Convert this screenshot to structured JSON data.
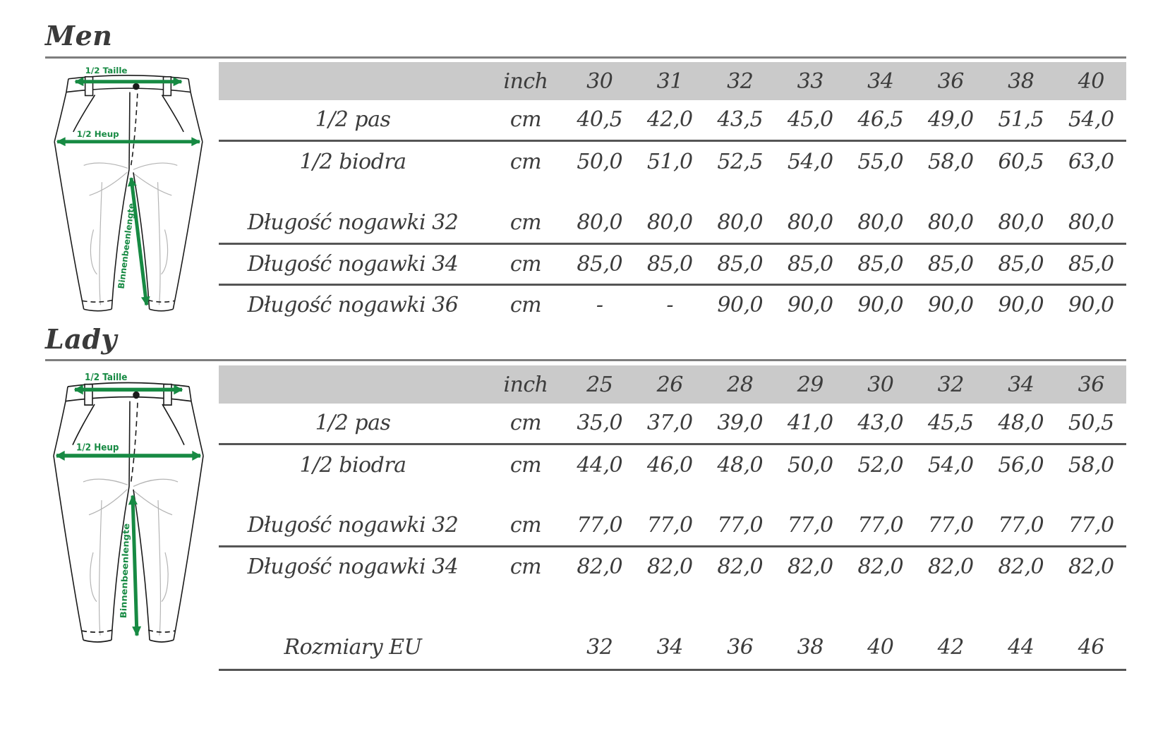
{
  "colors": {
    "accent_green": "#178a43",
    "header_band": "#cacaca",
    "rule_dark": "#555555",
    "rule_light": "#7e7e7e",
    "text": "#3c3c3c"
  },
  "sections": [
    {
      "title": "Men",
      "diagram": {
        "waist_label": "1/2 Taille",
        "hip_label": "1/2 Heup",
        "inseam_label": "Binnenbeenlengte"
      },
      "table": {
        "unit_header": "inch",
        "sizes": [
          "30",
          "31",
          "32",
          "33",
          "34",
          "36",
          "38",
          "40"
        ],
        "rows": [
          {
            "label": "1/2 pas",
            "unit": "cm",
            "values": [
              "40,5",
              "42,0",
              "43,5",
              "45,0",
              "46,5",
              "49,0",
              "51,5",
              "54,0"
            ],
            "rule_below": true
          },
          {
            "label": "1/2 biodra",
            "unit": "cm",
            "values": [
              "50,0",
              "51,0",
              "52,5",
              "54,0",
              "55,0",
              "58,0",
              "60,5",
              "63,0"
            ],
            "rule_below": false,
            "spacer_after": "small"
          },
          {
            "label": "Długość nogawki 32",
            "unit": "cm",
            "values": [
              "80,0",
              "80,0",
              "80,0",
              "80,0",
              "80,0",
              "80,0",
              "80,0",
              "80,0"
            ],
            "rule_below": true
          },
          {
            "label": "Długość nogawki 34",
            "unit": "cm",
            "values": [
              "85,0",
              "85,0",
              "85,0",
              "85,0",
              "85,0",
              "85,0",
              "85,0",
              "85,0"
            ],
            "rule_below": true
          },
          {
            "label": "Długość nogawki 36",
            "unit": "cm",
            "values": [
              "-",
              "-",
              "90,0",
              "90,0",
              "90,0",
              "90,0",
              "90,0",
              "90,0"
            ],
            "rule_below": false
          }
        ]
      }
    },
    {
      "title": "Lady",
      "diagram": {
        "waist_label": "1/2 Taille",
        "hip_label": "1/2 Heup",
        "inseam_label": "Binnenbeenlengte"
      },
      "table": {
        "unit_header": "inch",
        "sizes": [
          "25",
          "26",
          "28",
          "29",
          "30",
          "32",
          "34",
          "36"
        ],
        "rows": [
          {
            "label": "1/2 pas",
            "unit": "cm",
            "values": [
              "35,0",
              "37,0",
              "39,0",
              "41,0",
              "43,0",
              "45,5",
              "48,0",
              "50,5"
            ],
            "rule_below": true
          },
          {
            "label": "1/2 biodra",
            "unit": "cm",
            "values": [
              "44,0",
              "46,0",
              "48,0",
              "50,0",
              "52,0",
              "54,0",
              "56,0",
              "58,0"
            ],
            "rule_below": false,
            "spacer_after": "small"
          },
          {
            "label": "Długość nogawki  32",
            "unit": "cm",
            "values": [
              "77,0",
              "77,0",
              "77,0",
              "77,0",
              "77,0",
              "77,0",
              "77,0",
              "77,0"
            ],
            "rule_below": true
          },
          {
            "label": "Długość nogawki  34",
            "unit": "cm",
            "values": [
              "82,0",
              "82,0",
              "82,0",
              "82,0",
              "82,0",
              "82,0",
              "82,0",
              "82,0"
            ],
            "rule_below": false,
            "spacer_after": "large"
          },
          {
            "label": "Rozmiary EU",
            "unit": "",
            "values": [
              "32",
              "34",
              "36",
              "38",
              "40",
              "42",
              "44",
              "46"
            ],
            "rule_below": true
          }
        ]
      }
    }
  ]
}
